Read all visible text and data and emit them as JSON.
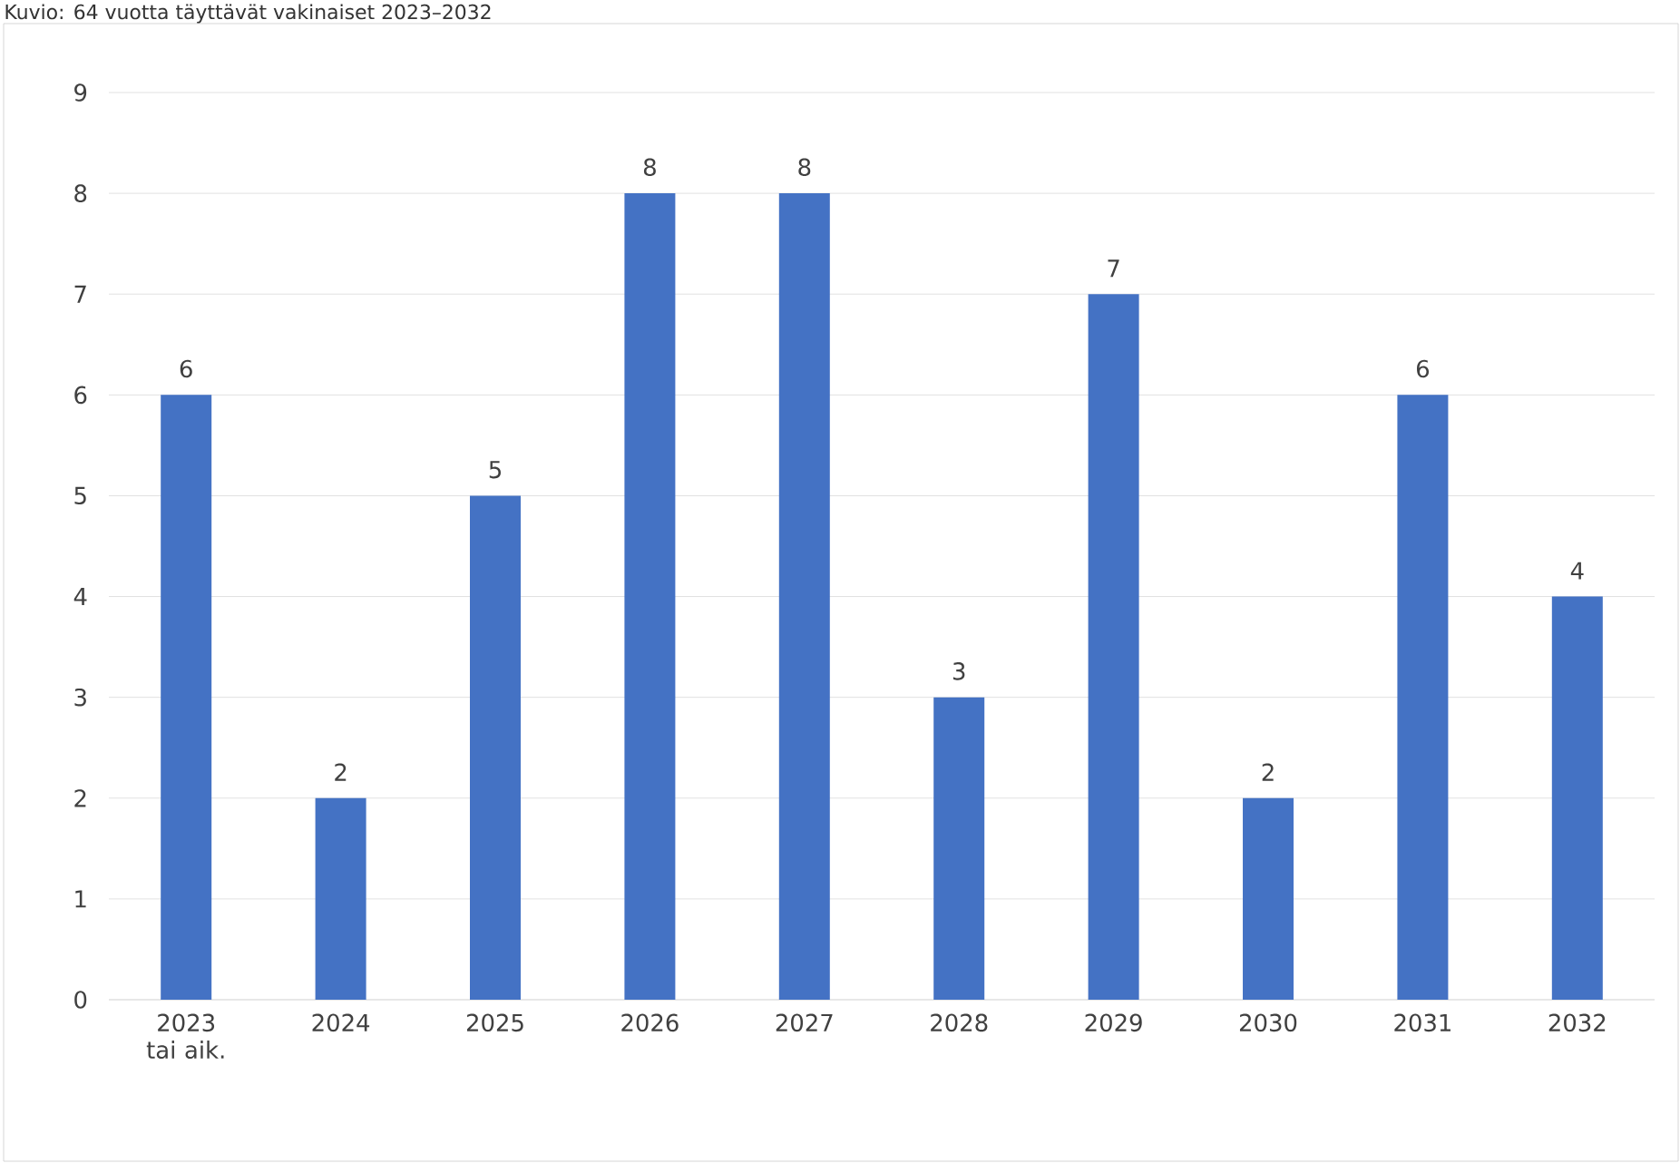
{
  "chart_data": {
    "type": "bar",
    "title": "Kuvio: 64 vuotta täyttävät vakinaiset 2023–2032",
    "categories": [
      "2023 tai aik.",
      "2024",
      "2025",
      "2026",
      "2027",
      "2028",
      "2029",
      "2030",
      "2031",
      "2032"
    ],
    "values": [
      6,
      2,
      5,
      8,
      8,
      3,
      7,
      2,
      6,
      4
    ],
    "color": "#4472c4",
    "ylim": [
      0,
      9
    ],
    "yticks": [
      0,
      1,
      2,
      3,
      4,
      5,
      6,
      7,
      8,
      9
    ],
    "grid": "y",
    "data_labels": true
  }
}
